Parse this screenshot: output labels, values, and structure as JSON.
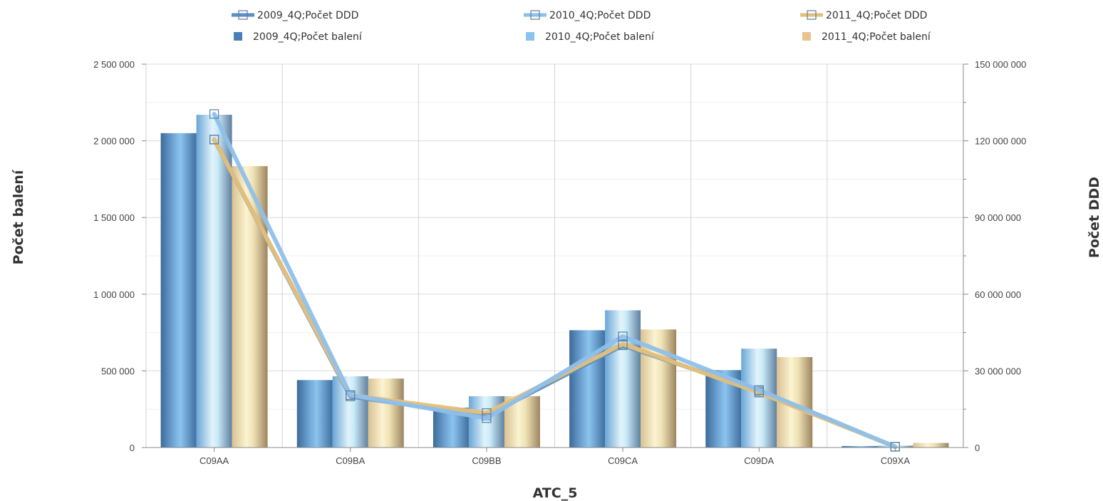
{
  "chart_data": {
    "type": "bar",
    "title": "",
    "xlabel": "ATC_5",
    "ylabel_left": "Počet balení",
    "ylabel_right": "Počet DDD",
    "categories": [
      "C09AA",
      "C09BA",
      "C09BB",
      "C09CA",
      "C09DA",
      "C09XA"
    ],
    "ylim_left": [
      0,
      2500000
    ],
    "ylim_right": [
      0,
      150000000
    ],
    "left_ticks": [
      "0",
      "500 000",
      "1 000 000",
      "1 500 000",
      "2 000 000",
      "2 500 000"
    ],
    "right_ticks": [
      "0",
      "30 000 000",
      "60 000 000",
      "90 000 000",
      "120 000 000",
      "150 000 000"
    ],
    "grid": true,
    "legend_position": "top",
    "series": [
      {
        "name": "2009_4Q;Počet DDD",
        "kind": "line",
        "axis": "right",
        "color": "#5b8fc4",
        "values": [
          120500000,
          20000000,
          12500000,
          40000000,
          22000000,
          300000
        ]
      },
      {
        "name": "2010_4Q;Počet DDD",
        "kind": "line",
        "axis": "right",
        "color": "#8ec0ea",
        "values": [
          130500000,
          20500000,
          11500000,
          43500000,
          22500000,
          300000
        ]
      },
      {
        "name": "2011_4Q;Počet DDD",
        "kind": "line",
        "axis": "right",
        "color": "#e6c07a",
        "values": [
          120500000,
          20500000,
          13500000,
          40500000,
          21500000,
          300000
        ]
      },
      {
        "name": "2009_4Q;Počet balení",
        "kind": "bar",
        "axis": "left",
        "color": "#4a7fb5",
        "values": [
          2050000,
          440000,
          260000,
          765000,
          505000,
          10000
        ]
      },
      {
        "name": "2010_4Q;Počet balení",
        "kind": "bar",
        "axis": "left",
        "color": "#8cc3ec",
        "values": [
          2170000,
          465000,
          335000,
          895000,
          645000,
          12000
        ]
      },
      {
        "name": "2011_4Q;Počet balení",
        "kind": "bar",
        "axis": "left",
        "color": "#e9c48f",
        "values": [
          1835000,
          450000,
          335000,
          770000,
          590000,
          30000
        ]
      }
    ]
  }
}
